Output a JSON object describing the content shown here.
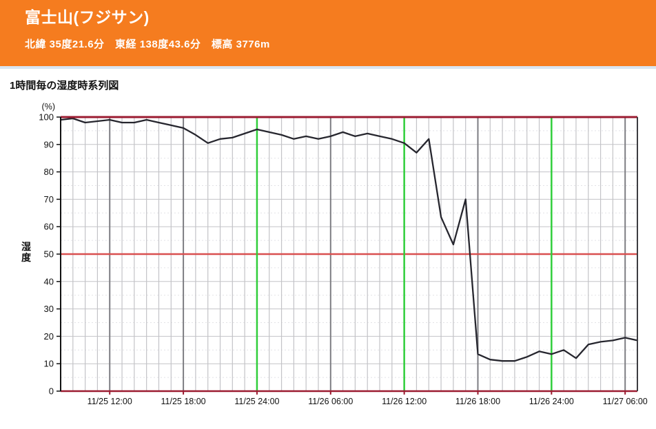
{
  "header": {
    "title": "富士山(フジサン)",
    "subtitle": "北緯 35度21.6分　東経 138度43.6分　標高 3776m",
    "bg_color": "#f57c1f"
  },
  "section": {
    "chart_heading": "1時間毎の湿度時系列図"
  },
  "chart_data": {
    "type": "line",
    "title": "1時間毎の湿度時系列図",
    "ylabel": "湿度",
    "y_unit": "(%)",
    "ylim": [
      0,
      100
    ],
    "y_ticks": [
      0,
      10,
      20,
      30,
      40,
      50,
      60,
      70,
      80,
      90,
      100
    ],
    "grid": "hourly vertical, 10% horizontal, dotted 5% minor",
    "legend": "none",
    "x": [
      "11/25 08:00",
      "11/25 09:00",
      "11/25 10:00",
      "11/25 11:00",
      "11/25 12:00",
      "11/25 13:00",
      "11/25 14:00",
      "11/25 15:00",
      "11/25 16:00",
      "11/25 17:00",
      "11/25 18:00",
      "11/25 19:00",
      "11/25 20:00",
      "11/25 21:00",
      "11/25 22:00",
      "11/25 23:00",
      "11/25 24:00",
      "11/26 01:00",
      "11/26 02:00",
      "11/26 03:00",
      "11/26 04:00",
      "11/26 05:00",
      "11/26 06:00",
      "11/26 07:00",
      "11/26 08:00",
      "11/26 09:00",
      "11/26 10:00",
      "11/26 11:00",
      "11/26 12:00",
      "11/26 13:00",
      "11/26 14:00",
      "11/26 15:00",
      "11/26 16:00",
      "11/26 17:00",
      "11/26 18:00",
      "11/26 19:00",
      "11/26 20:00",
      "11/26 21:00",
      "11/26 22:00",
      "11/26 23:00",
      "11/26 24:00",
      "11/27 01:00",
      "11/27 02:00",
      "11/27 03:00",
      "11/27 04:00",
      "11/27 05:00",
      "11/27 06:00",
      "11/27 07:00"
    ],
    "values": [
      99,
      99.5,
      98,
      98.5,
      99,
      98,
      98,
      99,
      98,
      97,
      96,
      93.5,
      90.5,
      92,
      92.5,
      94,
      95.5,
      94.5,
      93.5,
      92,
      93,
      92,
      93,
      94.5,
      93,
      94,
      93,
      92,
      90.5,
      87,
      92,
      63.5,
      53.5,
      70,
      13.5,
      11.5,
      11,
      11,
      12.5,
      14.5,
      13.5,
      15,
      12,
      17,
      18,
      18.5,
      19.5,
      18.5
    ],
    "x_tick_labels": [
      "11/25 12:00",
      "11/25 18:00",
      "11/25 24:00",
      "11/26 06:00",
      "11/26 12:00",
      "11/26 18:00",
      "11/26 24:00",
      "11/27 06:00"
    ],
    "x_tick_indices": [
      4,
      10,
      16,
      22,
      28,
      34,
      40,
      46
    ],
    "green_line_indices": [
      16,
      28,
      40
    ],
    "red_line_values": [
      0,
      50,
      100
    ],
    "colors": {
      "line": "#26262e",
      "green": "#2fce3a",
      "red_mid": "#d94f4f",
      "red_dark": "#9b1b30",
      "grid_light": "#c3c3c7",
      "grid_dark": "#7d7d82",
      "grid_minor": "#e2e2e6",
      "axis_left": "#111111",
      "axis_right": "#3c3c40",
      "tick_text": "#111111"
    }
  }
}
